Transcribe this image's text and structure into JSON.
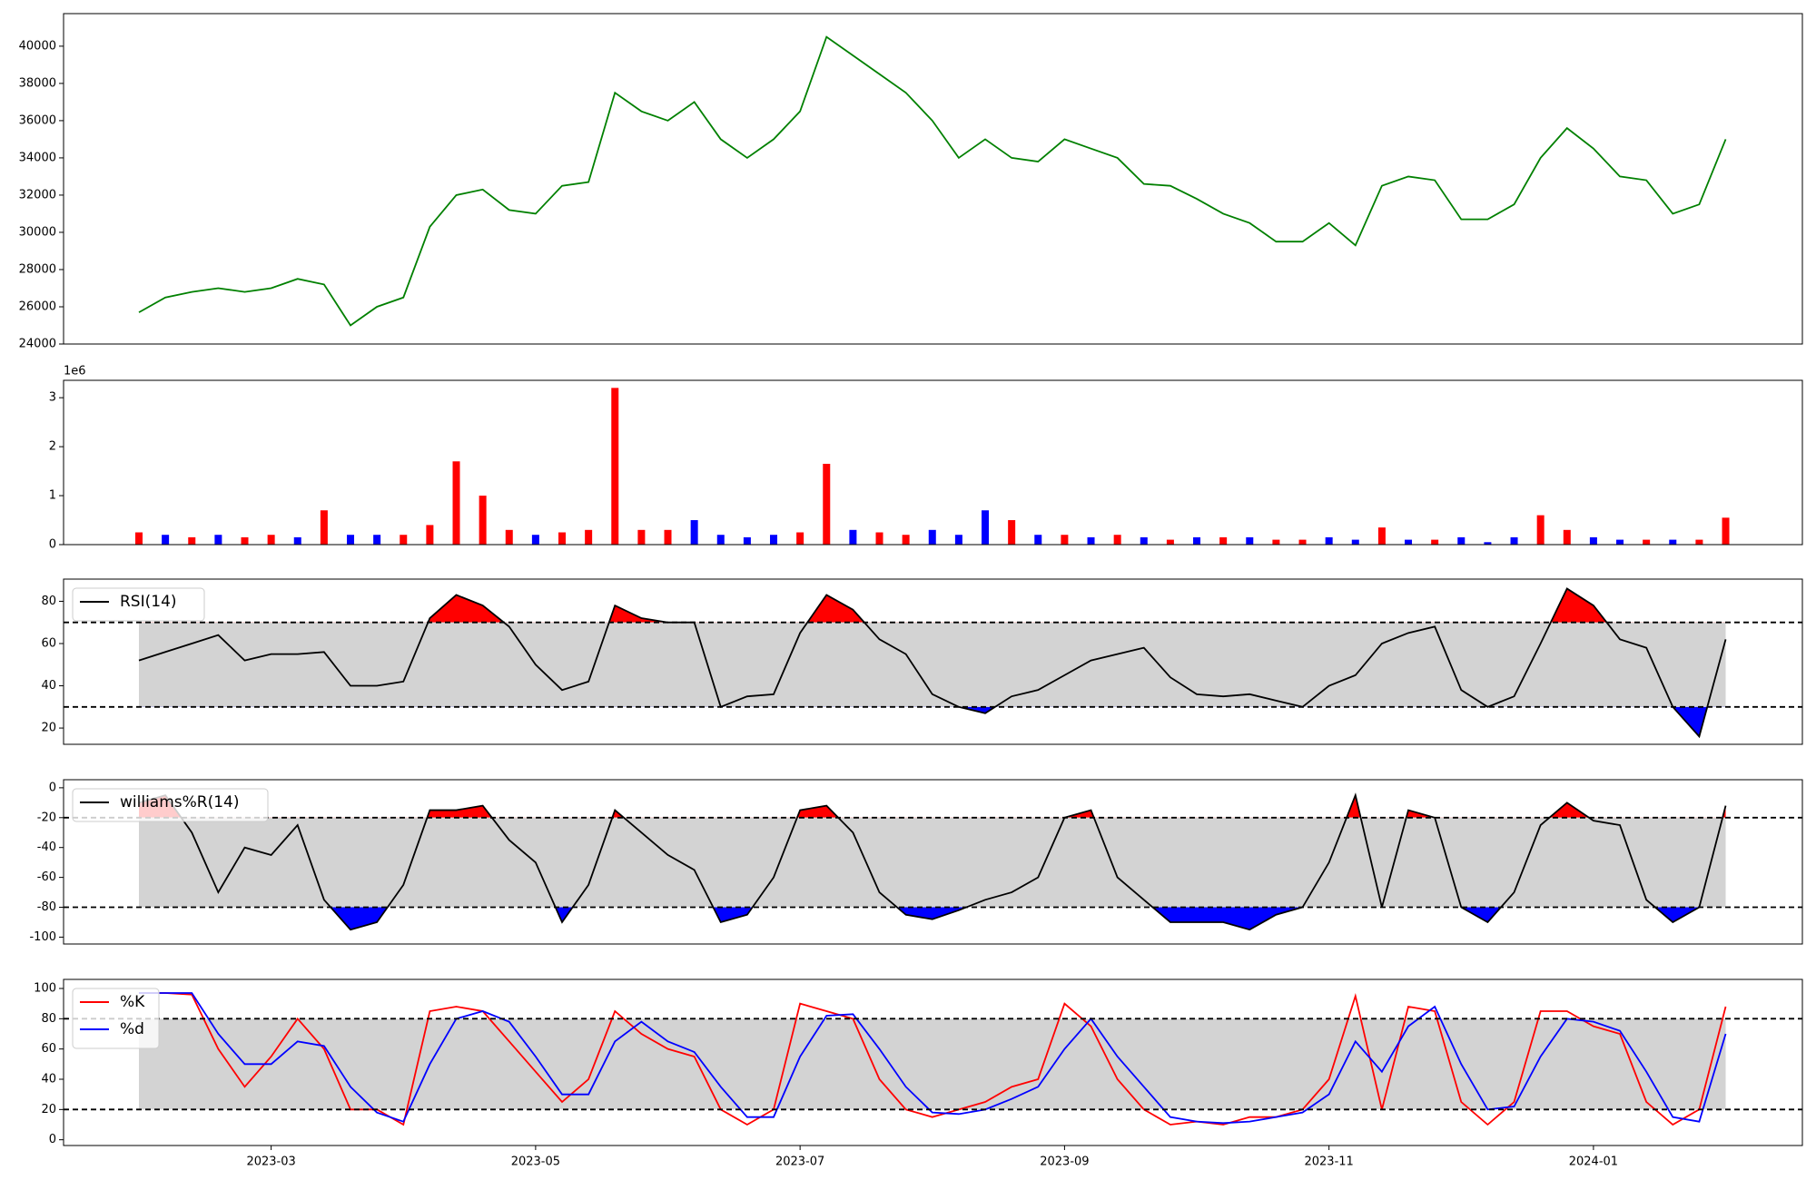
{
  "chart_data": [
    {
      "type": "line",
      "xlim": [
        0.43,
        13.58
      ],
      "ylim": [
        24000,
        41750
      ],
      "yticks": [
        24000,
        26000,
        28000,
        30000,
        32000,
        34000,
        36000,
        38000,
        40000
      ],
      "x": [
        1,
        1.2,
        1.4,
        1.6,
        1.8,
        2,
        2.2,
        2.4,
        2.6,
        2.8,
        3,
        3.2,
        3.4,
        3.6,
        3.8,
        4,
        4.2,
        4.4,
        4.6,
        4.8,
        5,
        5.2,
        5.4,
        5.6,
        5.8,
        6,
        6.2,
        6.4,
        6.6,
        6.8,
        7,
        7.2,
        7.4,
        7.6,
        7.8,
        8,
        8.2,
        8.4,
        8.6,
        8.8,
        9,
        9.2,
        9.4,
        9.6,
        9.8,
        10,
        10.2,
        10.4,
        10.6,
        10.8,
        11,
        11.2,
        11.4,
        11.6,
        11.8,
        12,
        12.2,
        12.4,
        12.6,
        12.8,
        13
      ],
      "series": [
        {
          "color": "#008000",
          "values": [
            25700,
            26500,
            26800,
            27000,
            26800,
            27000,
            27500,
            27200,
            25000,
            26000,
            26500,
            30300,
            32000,
            32300,
            31200,
            31000,
            32500,
            32700,
            37500,
            36500,
            36000,
            37000,
            35000,
            34000,
            35000,
            36500,
            40500,
            39500,
            38500,
            37500,
            36000,
            34000,
            35000,
            34000,
            33800,
            35000,
            34500,
            34000,
            32600,
            32500,
            31800,
            31000,
            30500,
            29500,
            29500,
            30500,
            29300,
            32500,
            33000,
            32800,
            30700,
            30700,
            31500,
            34000,
            35600,
            34500,
            33000,
            32800,
            31000,
            31500,
            35000
          ]
        }
      ]
    },
    {
      "type": "bar",
      "xlim": [
        0.43,
        13.58
      ],
      "ylim": [
        0,
        3.355
      ],
      "yticks": [
        0,
        1,
        2,
        3
      ],
      "offset_label": "1e6",
      "x": [
        1,
        1.2,
        1.4,
        1.6,
        1.8,
        2,
        2.2,
        2.4,
        2.6,
        2.8,
        3,
        3.2,
        3.4,
        3.6,
        3.8,
        4,
        4.2,
        4.4,
        4.6,
        4.8,
        5,
        5.2,
        5.4,
        5.6,
        5.8,
        6,
        6.2,
        6.4,
        6.6,
        6.8,
        7,
        7.2,
        7.4,
        7.6,
        7.8,
        8,
        8.2,
        8.4,
        8.6,
        8.8,
        9,
        9.2,
        9.4,
        9.6,
        9.8,
        10,
        10.2,
        10.4,
        10.6,
        10.8,
        11,
        11.2,
        11.4,
        11.6,
        11.8,
        12,
        12.2,
        12.4,
        12.6,
        12.8,
        13
      ],
      "values": [
        0.25,
        0.2,
        0.15,
        0.2,
        0.15,
        0.2,
        0.15,
        0.7,
        0.2,
        0.2,
        0.2,
        0.4,
        1.7,
        1.0,
        0.3,
        0.2,
        0.25,
        0.3,
        3.2,
        0.3,
        0.3,
        0.5,
        0.2,
        0.15,
        0.2,
        0.25,
        1.65,
        0.3,
        0.25,
        0.2,
        0.3,
        0.2,
        0.7,
        0.5,
        0.2,
        0.2,
        0.15,
        0.2,
        0.15,
        0.1,
        0.15,
        0.15,
        0.15,
        0.1,
        0.1,
        0.15,
        0.1,
        0.35,
        0.1,
        0.1,
        0.15,
        0.05,
        0.15,
        0.6,
        0.3,
        0.15,
        0.1,
        0.1,
        0.1,
        0.1,
        0.55
      ],
      "colors": [
        "red",
        "blue",
        "red",
        "blue",
        "red",
        "red",
        "blue",
        "red",
        "blue",
        "blue",
        "red",
        "red",
        "red",
        "red",
        "red",
        "blue",
        "red",
        "red",
        "red",
        "red",
        "red",
        "blue",
        "blue",
        "blue",
        "blue",
        "red",
        "red",
        "blue",
        "red",
        "red",
        "blue",
        "blue",
        "blue",
        "red",
        "blue",
        "red",
        "blue",
        "red",
        "blue",
        "red",
        "blue",
        "red",
        "blue",
        "red",
        "red",
        "blue",
        "blue",
        "red",
        "blue",
        "red",
        "blue",
        "blue",
        "blue",
        "red",
        "red",
        "blue",
        "blue",
        "red",
        "blue",
        "red",
        "red"
      ]
    },
    {
      "type": "oscillator",
      "xlim": [
        0.43,
        13.58
      ],
      "ylim": [
        12.3,
        90.5
      ],
      "yticks": [
        20,
        40,
        60,
        80
      ],
      "levels": [
        30,
        70
      ],
      "band_color": "#d3d3d3",
      "fill_colors": {
        "above": "red",
        "below": "blue"
      },
      "legend": "upper left",
      "x": [
        1,
        1.2,
        1.4,
        1.6,
        1.8,
        2,
        2.2,
        2.4,
        2.6,
        2.8,
        3,
        3.2,
        3.4,
        3.6,
        3.8,
        4,
        4.2,
        4.4,
        4.6,
        4.8,
        5,
        5.2,
        5.4,
        5.6,
        5.8,
        6,
        6.2,
        6.4,
        6.6,
        6.8,
        7,
        7.2,
        7.4,
        7.6,
        7.8,
        8,
        8.2,
        8.4,
        8.6,
        8.8,
        9,
        9.2,
        9.4,
        9.6,
        9.8,
        10,
        10.2,
        10.4,
        10.6,
        10.8,
        11,
        11.2,
        11.4,
        11.6,
        11.8,
        12,
        12.2,
        12.4,
        12.6,
        12.8,
        13
      ],
      "series": [
        {
          "name": "RSI(14)",
          "color": "black",
          "values": [
            52,
            56,
            60,
            64,
            52,
            55,
            55,
            56,
            40,
            40,
            42,
            72,
            83,
            78,
            68,
            50,
            38,
            42,
            78,
            72,
            70,
            70,
            30,
            35,
            36,
            65,
            83,
            76,
            62,
            55,
            36,
            30,
            27,
            35,
            38,
            45,
            52,
            55,
            58,
            44,
            36,
            35,
            36,
            33,
            30,
            40,
            45,
            60,
            65,
            68,
            38,
            30,
            35,
            60,
            86,
            78,
            62,
            58,
            30,
            16,
            62
          ]
        }
      ]
    },
    {
      "type": "oscillator",
      "xlim": [
        0.43,
        13.58
      ],
      "ylim": [
        -104.6,
        5.4
      ],
      "yticks": [
        -100,
        -80,
        -60,
        -40,
        -20,
        0
      ],
      "levels": [
        -80,
        -20
      ],
      "band_color": "#d3d3d3",
      "fill_colors": {
        "above": "red",
        "below": "blue"
      },
      "legend": "upper left",
      "x": [
        1,
        1.2,
        1.4,
        1.6,
        1.8,
        2,
        2.2,
        2.4,
        2.6,
        2.8,
        3,
        3.2,
        3.4,
        3.6,
        3.8,
        4,
        4.2,
        4.4,
        4.6,
        4.8,
        5,
        5.2,
        5.4,
        5.6,
        5.8,
        6,
        6.2,
        6.4,
        6.6,
        6.8,
        7,
        7.2,
        7.4,
        7.6,
        7.8,
        8,
        8.2,
        8.4,
        8.6,
        8.8,
        9,
        9.2,
        9.4,
        9.6,
        9.8,
        10,
        10.2,
        10.4,
        10.6,
        10.8,
        11,
        11.2,
        11.4,
        11.6,
        11.8,
        12,
        12.2,
        12.4,
        12.6,
        12.8,
        13
      ],
      "series": [
        {
          "name": "williams%R(14)",
          "color": "black",
          "values": [
            -10,
            -5,
            -30,
            -70,
            -40,
            -45,
            -25,
            -75,
            -95,
            -90,
            -65,
            -15,
            -15,
            -12,
            -35,
            -50,
            -90,
            -65,
            -15,
            -30,
            -45,
            -55,
            -90,
            -85,
            -60,
            -15,
            -12,
            -30,
            -70,
            -85,
            -88,
            -82,
            -75,
            -70,
            -60,
            -20,
            -15,
            -60,
            -75,
            -90,
            -90,
            -90,
            -95,
            -85,
            -80,
            -50,
            -5,
            -80,
            -15,
            -20,
            -80,
            -90,
            -70,
            -25,
            -10,
            -22,
            -25,
            -75,
            -90,
            -80,
            -12
          ]
        }
      ]
    },
    {
      "type": "oscillator",
      "xlim": [
        0.43,
        13.58
      ],
      "ylim": [
        -3.8,
        106
      ],
      "yticks": [
        0,
        20,
        40,
        60,
        80,
        100
      ],
      "levels": [
        20,
        80
      ],
      "band_color": "#d3d3d3",
      "legend": "upper left",
      "xticks": [
        {
          "value": 2,
          "label": "2023-03"
        },
        {
          "value": 4,
          "label": "2023-05"
        },
        {
          "value": 6,
          "label": "2023-07"
        },
        {
          "value": 8,
          "label": "2023-09"
        },
        {
          "value": 10,
          "label": "2023-11"
        },
        {
          "value": 12,
          "label": "2024-01"
        }
      ],
      "x": [
        1,
        1.2,
        1.4,
        1.6,
        1.8,
        2,
        2.2,
        2.4,
        2.6,
        2.8,
        3,
        3.2,
        3.4,
        3.6,
        3.8,
        4,
        4.2,
        4.4,
        4.6,
        4.8,
        5,
        5.2,
        5.4,
        5.6,
        5.8,
        6,
        6.2,
        6.4,
        6.6,
        6.8,
        7,
        7.2,
        7.4,
        7.6,
        7.8,
        8,
        8.2,
        8.4,
        8.6,
        8.8,
        9,
        9.2,
        9.4,
        9.6,
        9.8,
        10,
        10.2,
        10.4,
        10.6,
        10.8,
        11,
        11.2,
        11.4,
        11.6,
        11.8,
        12,
        12.2,
        12.4,
        12.6,
        12.8,
        13
      ],
      "series": [
        {
          "name": "%K",
          "color": "red",
          "values": [
            97,
            97,
            96,
            60,
            35,
            55,
            80,
            60,
            20,
            20,
            10,
            85,
            88,
            85,
            65,
            45,
            25,
            40,
            85,
            70,
            60,
            55,
            20,
            10,
            20,
            90,
            85,
            80,
            40,
            20,
            15,
            20,
            25,
            35,
            40,
            90,
            75,
            40,
            20,
            10,
            12,
            10,
            15,
            15,
            20,
            40,
            95,
            20,
            88,
            85,
            25,
            10,
            25,
            85,
            85,
            75,
            70,
            25,
            10,
            20,
            88
          ]
        },
        {
          "name": "%d",
          "color": "blue",
          "values": [
            97,
            97,
            97,
            70,
            50,
            50,
            65,
            62,
            35,
            18,
            12,
            50,
            80,
            85,
            78,
            55,
            30,
            30,
            65,
            78,
            65,
            58,
            35,
            15,
            15,
            55,
            82,
            83,
            60,
            35,
            18,
            17,
            20,
            27,
            35,
            60,
            80,
            55,
            35,
            15,
            12,
            11,
            12,
            15,
            18,
            30,
            65,
            45,
            75,
            88,
            50,
            20,
            22,
            55,
            80,
            78,
            72,
            45,
            15,
            12,
            70
          ]
        }
      ]
    }
  ]
}
